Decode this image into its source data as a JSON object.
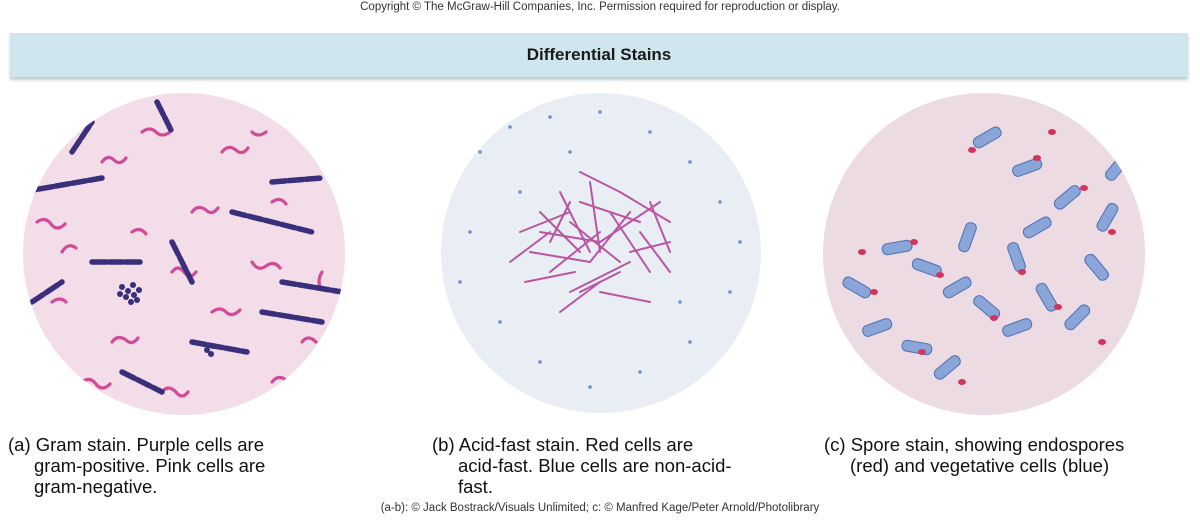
{
  "copyright": "Copyright © The McGraw-Hill Companies, Inc. Permission required for reproduction or display.",
  "banner_title": "Differential Stains",
  "panels": [
    {
      "caption_lines": [
        "(a) Gram stain. Purple cells are",
        "gram-positive. Pink cells are",
        "gram-negative."
      ],
      "colors": {
        "background": "#f3dde9",
        "positive": "#3a2f7a",
        "negative": "#d24a98"
      }
    },
    {
      "caption_lines": [
        "(b) Acid-fast stain. Red cells are",
        "acid-fast. Blue cells are non-acid-",
        "fast."
      ],
      "colors": {
        "background": "#e9eef5",
        "acid_fast": "#b5459a",
        "counterstain": "#6f8fc6"
      }
    },
    {
      "caption_lines": [
        "(c) Spore stain, showing endospores",
        "(red) and vegetative cells (blue)"
      ],
      "colors": {
        "background": "#ecdbe3",
        "vegetative": "#6e8fcb",
        "spore": "#d2345f"
      }
    }
  ],
  "credit": "(a-b): © Jack Bostrack/Visuals Unlimited; c: © Manfred Kage/Peter Arnold/Photolibrary"
}
